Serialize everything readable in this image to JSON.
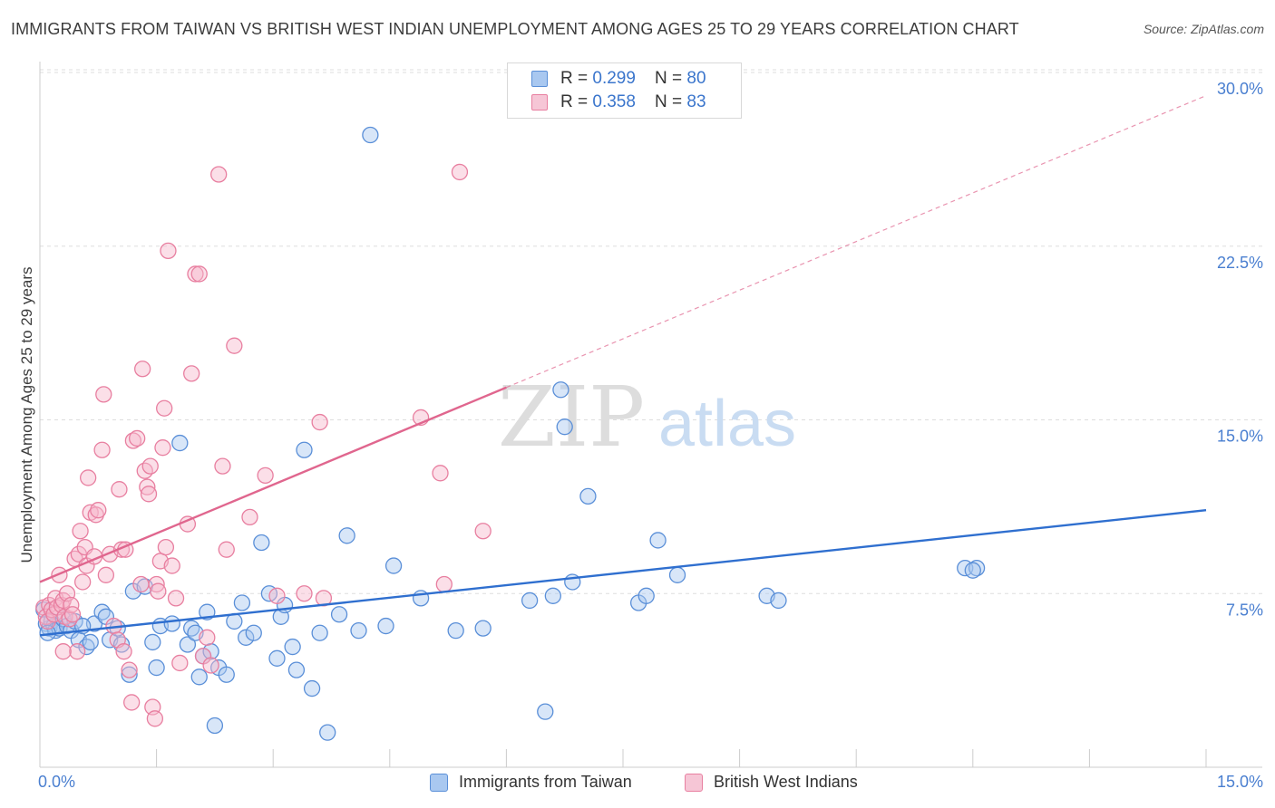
{
  "title": "IMMIGRANTS FROM TAIWAN VS BRITISH WEST INDIAN UNEMPLOYMENT AMONG AGES 25 TO 29 YEARS CORRELATION CHART",
  "source": "Source: ZipAtlas.com",
  "watermark": {
    "zip": "ZIP",
    "atlas": "atlas"
  },
  "legend_top": {
    "rows": [
      {
        "r_label": "R = ",
        "r_value": "0.299",
        "n_label": "N = ",
        "n_value": "80"
      },
      {
        "r_label": "R = ",
        "r_value": "0.358",
        "n_label": "N = ",
        "n_value": "83"
      }
    ]
  },
  "legend_bottom": [
    "Immigrants from Taiwan",
    "British West Indians"
  ],
  "colors": {
    "taiwan_fill": "#a9c8f0",
    "taiwan_stroke": "#5a8fd8",
    "taiwan_line": "#2f6fcf",
    "bwi_fill": "#f6b8cc",
    "bwi_stroke": "#e87fa0",
    "bwi_line": "#e0668e",
    "axis_text": "#4a7fd0",
    "grid": "#dddddd"
  },
  "chart_data": {
    "type": "scatter",
    "xlabel": "",
    "ylabel": "Unemployment Among Ages 25 to 29 years",
    "xlim": [
      0,
      15
    ],
    "ylim": [
      0,
      30
    ],
    "x_tick_labels": [
      "0.0%",
      "15.0%"
    ],
    "y_ticks": [
      7.5,
      15.0,
      22.5,
      30.0
    ],
    "y_tick_labels": [
      "7.5%",
      "15.0%",
      "22.5%",
      "30.0%"
    ],
    "series": [
      {
        "name": "Immigrants from Taiwan",
        "r": 0.299,
        "n": 80,
        "trend": {
          "x0": 0,
          "y0": 5.7,
          "x1": 15,
          "y1": 11.1,
          "dashed_from": null
        },
        "points": [
          [
            0.05,
            6.8
          ],
          [
            0.08,
            6.2
          ],
          [
            0.12,
            6.0
          ],
          [
            0.15,
            6.3
          ],
          [
            0.18,
            6.1
          ],
          [
            0.2,
            5.9
          ],
          [
            0.25,
            6.0
          ],
          [
            0.3,
            6.4
          ],
          [
            0.35,
            6.1
          ],
          [
            0.4,
            5.9
          ],
          [
            0.45,
            6.3
          ],
          [
            0.5,
            5.5
          ],
          [
            0.6,
            5.2
          ],
          [
            0.65,
            5.4
          ],
          [
            0.7,
            6.2
          ],
          [
            0.8,
            6.7
          ],
          [
            0.85,
            6.5
          ],
          [
            0.9,
            5.5
          ],
          [
            1.0,
            6.0
          ],
          [
            1.05,
            5.3
          ],
          [
            1.15,
            4.0
          ],
          [
            1.2,
            7.6
          ],
          [
            1.35,
            7.8
          ],
          [
            1.45,
            5.4
          ],
          [
            1.5,
            4.3
          ],
          [
            1.55,
            6.1
          ],
          [
            1.7,
            6.2
          ],
          [
            1.8,
            14.0
          ],
          [
            1.9,
            5.3
          ],
          [
            1.95,
            6.0
          ],
          [
            2.0,
            5.8
          ],
          [
            2.05,
            3.9
          ],
          [
            2.1,
            4.8
          ],
          [
            2.15,
            6.7
          ],
          [
            2.2,
            5.0
          ],
          [
            2.25,
            1.8
          ],
          [
            2.3,
            4.3
          ],
          [
            2.4,
            4.0
          ],
          [
            2.5,
            6.3
          ],
          [
            2.6,
            7.1
          ],
          [
            2.65,
            5.6
          ],
          [
            2.75,
            5.8
          ],
          [
            2.85,
            9.7
          ],
          [
            2.95,
            7.5
          ],
          [
            3.05,
            4.7
          ],
          [
            3.1,
            6.5
          ],
          [
            3.15,
            7.0
          ],
          [
            3.25,
            5.2
          ],
          [
            3.3,
            4.2
          ],
          [
            3.4,
            13.7
          ],
          [
            3.5,
            3.4
          ],
          [
            3.6,
            5.8
          ],
          [
            3.7,
            1.5
          ],
          [
            3.85,
            6.6
          ],
          [
            3.95,
            10.0
          ],
          [
            4.1,
            5.9
          ],
          [
            4.25,
            27.3
          ],
          [
            4.45,
            6.1
          ],
          [
            4.55,
            8.7
          ],
          [
            4.9,
            7.3
          ],
          [
            5.35,
            5.9
          ],
          [
            5.7,
            6.0
          ],
          [
            6.3,
            7.2
          ],
          [
            6.5,
            2.4
          ],
          [
            6.6,
            7.4
          ],
          [
            6.7,
            16.3
          ],
          [
            6.75,
            14.7
          ],
          [
            6.85,
            8.0
          ],
          [
            7.05,
            11.7
          ],
          [
            7.7,
            7.1
          ],
          [
            7.8,
            7.4
          ],
          [
            7.95,
            9.8
          ],
          [
            8.2,
            8.3
          ],
          [
            9.35,
            7.4
          ],
          [
            9.5,
            7.2
          ],
          [
            11.9,
            8.6
          ],
          [
            12.05,
            8.6
          ],
          [
            12.0,
            8.5
          ],
          [
            0.1,
            5.8
          ],
          [
            0.55,
            6.1
          ]
        ]
      },
      {
        "name": "British West Indians",
        "r": 0.358,
        "n": 83,
        "trend": {
          "x0": 0,
          "y0": 8.0,
          "x1": 6.0,
          "y1": 16.4,
          "dashed_to": {
            "x": 15,
            "y": 29.0
          }
        },
        "points": [
          [
            0.05,
            6.9
          ],
          [
            0.08,
            6.5
          ],
          [
            0.1,
            6.3
          ],
          [
            0.12,
            7.0
          ],
          [
            0.15,
            6.8
          ],
          [
            0.18,
            6.6
          ],
          [
            0.2,
            7.3
          ],
          [
            0.22,
            6.9
          ],
          [
            0.25,
            8.3
          ],
          [
            0.28,
            7.0
          ],
          [
            0.3,
            7.2
          ],
          [
            0.32,
            6.5
          ],
          [
            0.35,
            7.5
          ],
          [
            0.38,
            6.4
          ],
          [
            0.4,
            7.0
          ],
          [
            0.42,
            6.6
          ],
          [
            0.45,
            9.0
          ],
          [
            0.48,
            5.0
          ],
          [
            0.5,
            9.2
          ],
          [
            0.52,
            10.2
          ],
          [
            0.55,
            8.0
          ],
          [
            0.58,
            9.5
          ],
          [
            0.6,
            8.7
          ],
          [
            0.62,
            12.5
          ],
          [
            0.65,
            11.0
          ],
          [
            0.7,
            9.1
          ],
          [
            0.72,
            10.9
          ],
          [
            0.75,
            11.1
          ],
          [
            0.8,
            13.7
          ],
          [
            0.82,
            16.1
          ],
          [
            0.85,
            8.3
          ],
          [
            0.9,
            9.2
          ],
          [
            0.95,
            6.1
          ],
          [
            1.0,
            5.5
          ],
          [
            1.02,
            12.0
          ],
          [
            1.05,
            9.4
          ],
          [
            1.08,
            5.0
          ],
          [
            1.1,
            9.4
          ],
          [
            1.15,
            4.2
          ],
          [
            1.18,
            2.8
          ],
          [
            1.2,
            14.1
          ],
          [
            1.25,
            14.2
          ],
          [
            1.3,
            7.9
          ],
          [
            1.32,
            17.2
          ],
          [
            1.35,
            12.8
          ],
          [
            1.38,
            12.1
          ],
          [
            1.4,
            11.8
          ],
          [
            1.42,
            13.0
          ],
          [
            1.45,
            2.6
          ],
          [
            1.48,
            2.1
          ],
          [
            1.5,
            7.9
          ],
          [
            1.52,
            7.6
          ],
          [
            1.55,
            8.9
          ],
          [
            1.58,
            13.8
          ],
          [
            1.6,
            15.5
          ],
          [
            1.62,
            9.5
          ],
          [
            1.65,
            22.3
          ],
          [
            1.7,
            8.7
          ],
          [
            1.75,
            7.3
          ],
          [
            1.8,
            4.5
          ],
          [
            1.9,
            10.5
          ],
          [
            1.95,
            17.0
          ],
          [
            2.0,
            21.3
          ],
          [
            2.05,
            21.3
          ],
          [
            2.1,
            4.8
          ],
          [
            2.15,
            5.6
          ],
          [
            2.2,
            4.4
          ],
          [
            2.3,
            25.6
          ],
          [
            2.35,
            13.0
          ],
          [
            2.4,
            9.4
          ],
          [
            2.5,
            18.2
          ],
          [
            2.7,
            10.8
          ],
          [
            2.9,
            12.6
          ],
          [
            3.05,
            7.4
          ],
          [
            3.4,
            7.5
          ],
          [
            3.6,
            14.9
          ],
          [
            3.65,
            7.3
          ],
          [
            4.9,
            15.1
          ],
          [
            5.15,
            12.7
          ],
          [
            5.2,
            7.9
          ],
          [
            5.4,
            25.7
          ],
          [
            5.7,
            10.2
          ],
          [
            0.3,
            5.0
          ]
        ]
      }
    ]
  }
}
